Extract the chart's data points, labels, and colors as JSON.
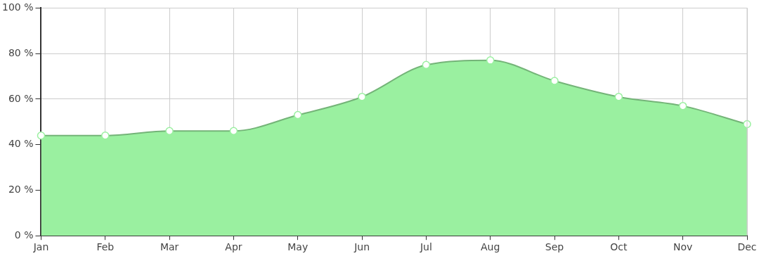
{
  "chart_data": {
    "type": "area",
    "categories": [
      "Jan",
      "Feb",
      "Mar",
      "Apr",
      "May",
      "Jun",
      "Jul",
      "Aug",
      "Sep",
      "Oct",
      "Nov",
      "Dec"
    ],
    "series": [
      {
        "color": "#9af0a0",
        "values": [
          44,
          44,
          46,
          46,
          53,
          61,
          75,
          77,
          68,
          61,
          57,
          49
        ]
      }
    ],
    "ylim": [
      0,
      100
    ],
    "yticks": [
      {
        "value": 0,
        "label": "0 %"
      },
      {
        "value": 20,
        "label": "20 %"
      },
      {
        "value": 40,
        "label": "40 %"
      },
      {
        "value": 60,
        "label": "60 %"
      },
      {
        "value": 80,
        "label": "80 %"
      },
      {
        "value": 100,
        "label": "100 %"
      }
    ],
    "grid": true,
    "marker": "circle"
  }
}
